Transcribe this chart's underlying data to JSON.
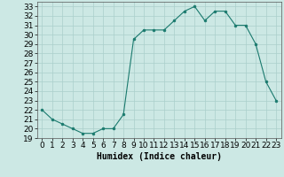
{
  "title": "",
  "xlabel": "Humidex (Indice chaleur)",
  "ylabel": "",
  "x": [
    0,
    1,
    2,
    3,
    4,
    5,
    6,
    7,
    8,
    9,
    10,
    11,
    12,
    13,
    14,
    15,
    16,
    17,
    18,
    19,
    20,
    21,
    22,
    23
  ],
  "y": [
    22.0,
    21.0,
    20.5,
    20.0,
    19.5,
    19.5,
    20.0,
    20.0,
    21.5,
    29.5,
    30.5,
    30.5,
    30.5,
    31.5,
    32.5,
    33.0,
    31.5,
    32.5,
    32.5,
    31.0,
    31.0,
    29.0,
    25.0,
    23.0
  ],
  "line_color": "#1a7a6e",
  "marker": "o",
  "marker_size": 2,
  "bg_color": "#cce8e4",
  "grid_color": "#aacfcb",
  "ylim": [
    19,
    33.5
  ],
  "xlim": [
    -0.5,
    23.5
  ],
  "yticks": [
    19,
    20,
    21,
    22,
    23,
    24,
    25,
    26,
    27,
    28,
    29,
    30,
    31,
    32,
    33
  ],
  "xticks": [
    0,
    1,
    2,
    3,
    4,
    5,
    6,
    7,
    8,
    9,
    10,
    11,
    12,
    13,
    14,
    15,
    16,
    17,
    18,
    19,
    20,
    21,
    22,
    23
  ],
  "label_fontsize": 7,
  "tick_fontsize": 6.5
}
